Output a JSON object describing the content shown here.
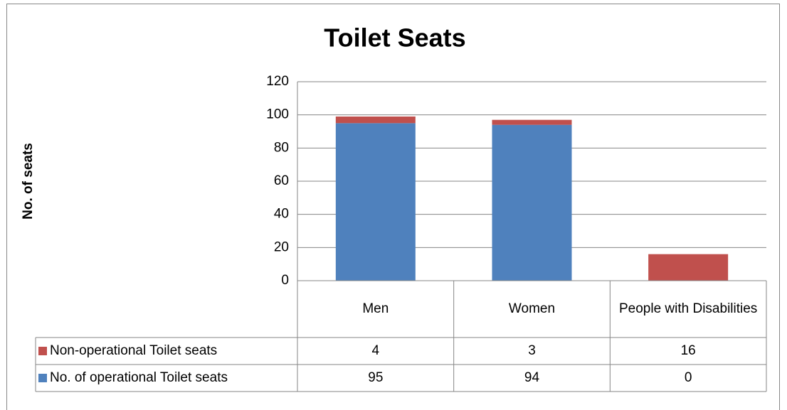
{
  "chart_data": {
    "type": "bar",
    "stacked": true,
    "title": "Toilet Seats",
    "y_label": "No. of seats",
    "categories": [
      "Men",
      "Women",
      "People with Disabilities"
    ],
    "series": [
      {
        "name": "No. of operational Toilet seats",
        "color": "#4f81bd",
        "values": [
          95,
          94,
          0
        ]
      },
      {
        "name": "Non-operational Toilet seats",
        "color": "#c0504d",
        "values": [
          4,
          3,
          16
        ]
      }
    ],
    "ylim": [
      0,
      120
    ],
    "yticks": [
      0,
      20,
      40,
      60,
      80,
      100,
      120
    ],
    "grid": true,
    "data_table": true
  }
}
